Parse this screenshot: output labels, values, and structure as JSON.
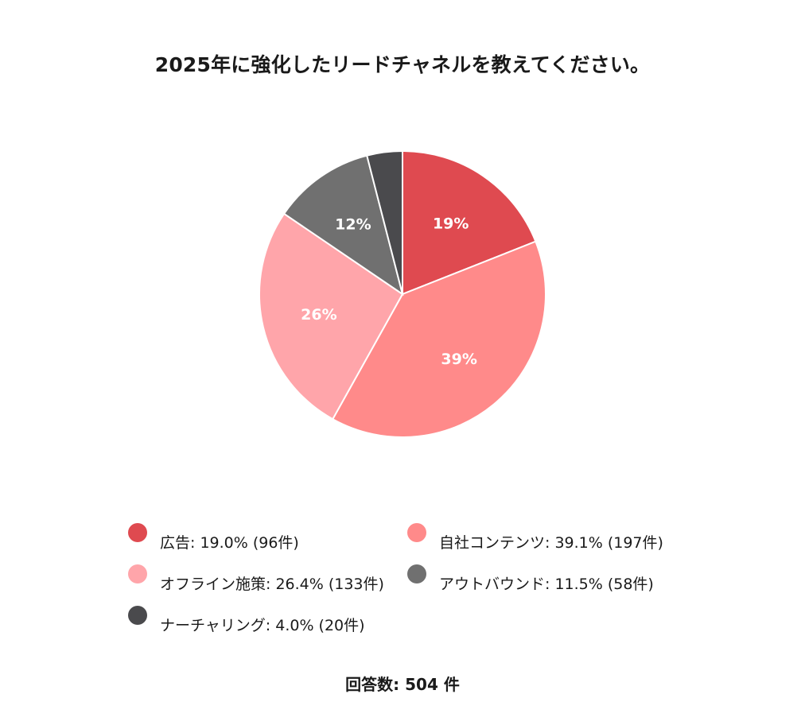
{
  "title": "2025年に強化したリードチャネルを教えてください。",
  "footer": "回答数: 504 件",
  "chart_data": {
    "type": "pie",
    "title": "2025年に強化したリードチャネルを教えてください。",
    "total_label": "回答数: 504 件",
    "slices": [
      {
        "name": "広告",
        "percent": 19.0,
        "count": 96,
        "label": "19%",
        "legend": "広告: 19.0% (96件)",
        "color": "#df4a50"
      },
      {
        "name": "自社コンテンツ",
        "percent": 39.1,
        "count": 197,
        "label": "39%",
        "legend": "自社コンテンツ: 39.1% (197件)",
        "color": "#ff8a8a"
      },
      {
        "name": "オフライン施策",
        "percent": 26.4,
        "count": 133,
        "label": "26%",
        "legend": "オフライン施策: 26.4% (133件)",
        "color": "#ffa5aa"
      },
      {
        "name": "アウトバウンド",
        "percent": 11.5,
        "count": 58,
        "label": "12%",
        "legend": "アウトバウンド: 11.5% (58件)",
        "color": "#707070"
      },
      {
        "name": "ナーチャリング",
        "percent": 4.0,
        "count": 20,
        "label": "",
        "legend": "ナーチャリング: 4.0% (20件)",
        "color": "#4a4a4d"
      }
    ],
    "legend_placement": "bottom"
  }
}
